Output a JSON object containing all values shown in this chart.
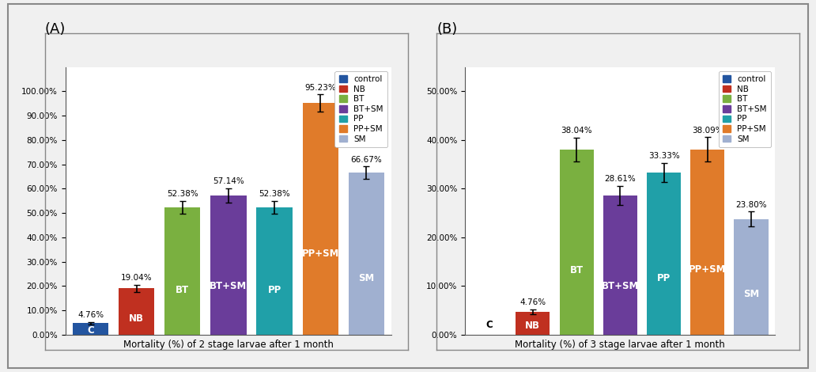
{
  "A": {
    "xlabel": "Mortality (%) of 2 stage larvae after 1 month",
    "categories": [
      "C",
      "NB",
      "BT",
      "BT+SM",
      "PP",
      "PP+SM",
      "SM"
    ],
    "values": [
      4.76,
      19.04,
      52.38,
      57.14,
      52.38,
      95.23,
      66.67
    ],
    "errors": [
      0.5,
      1.5,
      2.5,
      3.0,
      2.5,
      3.5,
      2.5
    ],
    "colors": [
      "#2355a0",
      "#c03020",
      "#7ab040",
      "#6a3d9a",
      "#20a0a8",
      "#e07b2a",
      "#a0b0d0"
    ],
    "ylim": [
      0,
      100
    ],
    "yticks": [
      0,
      10,
      20,
      30,
      40,
      50,
      60,
      70,
      80,
      90,
      100
    ],
    "yticklabels": [
      "0.00%",
      "10.00%",
      "20.00%",
      "30.00%",
      "40.00%",
      "50.00%",
      "60.00%",
      "70.00%",
      "80.00%",
      "90.00%",
      "100.00%"
    ]
  },
  "B": {
    "xlabel": "Mortality (%) of 3 stage larvae after 1 month",
    "categories": [
      "C",
      "NB",
      "BT",
      "BT+SM",
      "PP",
      "PP+SM",
      "SM"
    ],
    "values": [
      0.0,
      4.76,
      38.04,
      28.61,
      33.33,
      38.09,
      23.8
    ],
    "errors": [
      0.0,
      0.5,
      2.5,
      2.0,
      2.0,
      2.5,
      1.5
    ],
    "colors": [
      "#2355a0",
      "#c03020",
      "#7ab040",
      "#6a3d9a",
      "#20a0a8",
      "#e07b2a",
      "#a0b0d0"
    ],
    "ylim": [
      0,
      50
    ],
    "yticks": [
      0,
      10,
      20,
      30,
      40,
      50
    ],
    "yticklabels": [
      "0.00%",
      "10.00%",
      "20.00%",
      "30.00%",
      "40.00%",
      "50.00%"
    ]
  },
  "legend_labels": [
    "control",
    "NB",
    "BT",
    "BT+SM",
    "PP",
    "PP+SM",
    "SM"
  ],
  "legend_colors": [
    "#2355a0",
    "#c03020",
    "#7ab040",
    "#6a3d9a",
    "#20a0a8",
    "#e07b2a",
    "#a0b0d0"
  ],
  "panel_A_label": "(A)",
  "panel_B_label": "(B)",
  "bar_label_fontsize": 7.5,
  "inner_label_fontsize": 8.5,
  "axis_label_fontsize": 8.5,
  "tick_fontsize": 7.5,
  "legend_fontsize": 7.5,
  "bg_color": "#f0f0f0",
  "plot_bg": "#ffffff",
  "frame_color": "#888888"
}
